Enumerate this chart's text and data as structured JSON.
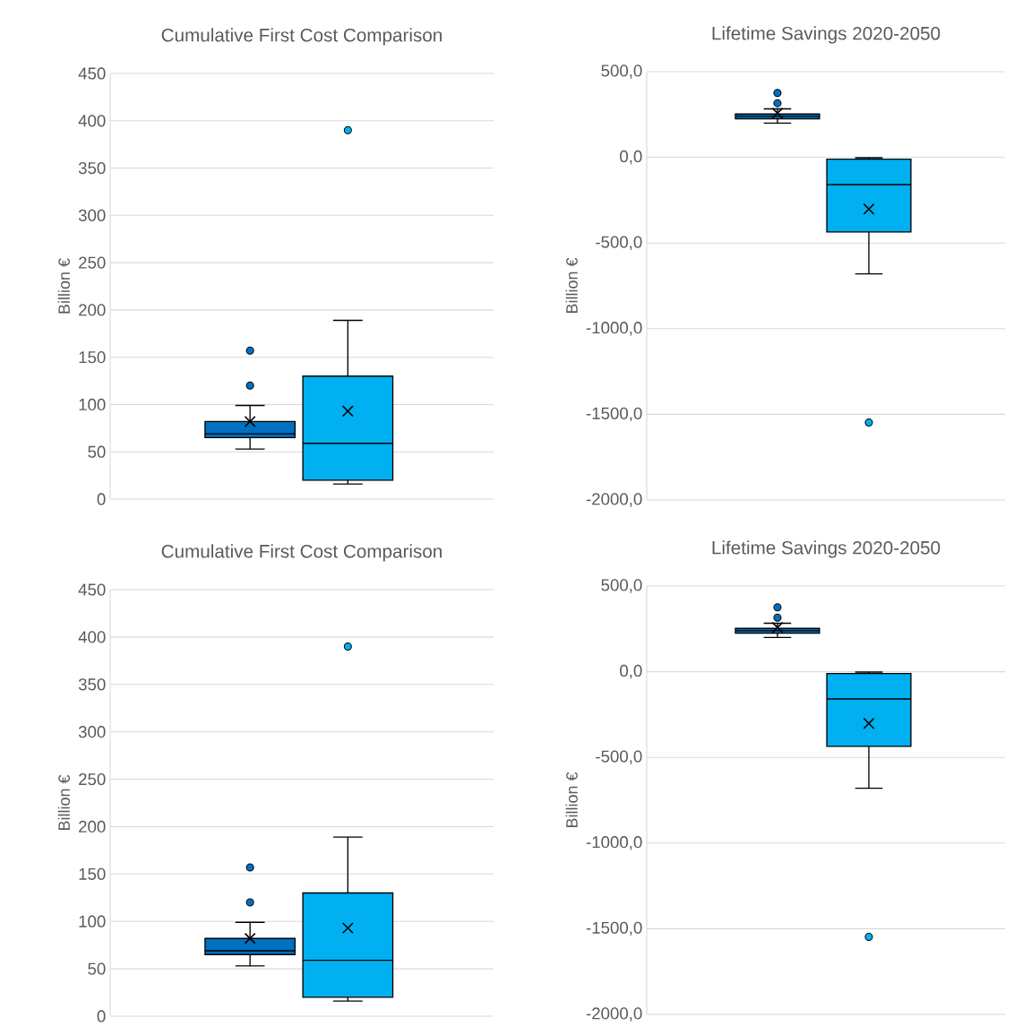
{
  "chart_data": [
    {
      "type": "box",
      "title": "Cumulative First Cost Comparison",
      "ylabel": "Billion €",
      "categories": [
        null,
        null
      ],
      "colors": [
        "#0070c0",
        "#00b0f0"
      ],
      "boxes": [
        {
          "low": 53,
          "q1": 65,
          "median": 69,
          "q3": 82,
          "high": 99,
          "mean": 82,
          "outliers": [
            120,
            157
          ]
        },
        {
          "low": 16,
          "q1": 20,
          "median": 59,
          "q3": 130,
          "high": 189,
          "mean": 93,
          "outliers": [
            390
          ]
        }
      ],
      "ylim": [
        0,
        450
      ],
      "yticks": [
        0,
        50,
        100,
        150,
        200,
        250,
        300,
        350,
        400,
        450
      ],
      "grid": "y",
      "tick_labels": "y"
    },
    {
      "type": "box",
      "title": "Lifetime Savings 2020-2050",
      "ylabel": "Billion €",
      "categories": [
        null,
        null
      ],
      "colors": [
        "#0070c0",
        "#00b0f0"
      ],
      "boxes": [
        {
          "low": 200,
          "q1": 225,
          "median": 239,
          "q3": 253,
          "high": 283,
          "mean": 258,
          "outliers": [
            316,
            376
          ]
        },
        {
          "low": -680,
          "q1": -436,
          "median": -159,
          "q3": -11,
          "high": -2,
          "mean": -302,
          "outliers": [
            -1548
          ]
        }
      ],
      "ylim": [
        -2000,
        500
      ],
      "yticks": [
        {
          "value": -2000,
          "label": "-2000,0"
        },
        {
          "value": -1500,
          "label": "-1500,0"
        },
        {
          "value": -1000,
          "label": "-1000,0"
        },
        {
          "value": -500,
          "label": "-500,0"
        },
        {
          "value": 0,
          "label": "0,0"
        },
        {
          "value": 500,
          "label": "500,0"
        }
      ],
      "grid": "y",
      "tick_labels": "y"
    },
    {
      "type": "box",
      "title": "Cumulative First Cost Comparison",
      "ylabel": "Billion €",
      "categories": [
        null,
        null
      ],
      "colors": [
        "#0070c0",
        "#00b0f0"
      ],
      "boxes": [
        {
          "low": 53,
          "q1": 65,
          "median": 69,
          "q3": 82,
          "high": 99,
          "mean": 82,
          "outliers": [
            120,
            157
          ]
        },
        {
          "low": 16,
          "q1": 20,
          "median": 59,
          "q3": 130,
          "high": 189,
          "mean": 93,
          "outliers": [
            390
          ]
        }
      ],
      "ylim": [
        0,
        450
      ],
      "yticks": [
        0,
        50,
        100,
        150,
        200,
        250,
        300,
        350,
        400,
        450
      ],
      "grid": "y",
      "tick_labels": "y"
    },
    {
      "type": "box",
      "title": "Lifetime Savings 2020-2050",
      "ylabel": "Billion €",
      "categories": [
        null,
        null
      ],
      "colors": [
        "#0070c0",
        "#00b0f0"
      ],
      "boxes": [
        {
          "low": 200,
          "q1": 225,
          "median": 239,
          "q3": 253,
          "high": 283,
          "mean": 258,
          "outliers": [
            316,
            376
          ]
        },
        {
          "low": -680,
          "q1": -436,
          "median": -159,
          "q3": -11,
          "high": -2,
          "mean": -302,
          "outliers": [
            -1548
          ]
        }
      ],
      "ylim": [
        -2000,
        500
      ],
      "yticks": [
        {
          "value": -2000,
          "label": "-2000,0"
        },
        {
          "value": -1500,
          "label": "-1500,0"
        },
        {
          "value": -1000,
          "label": "-1000,0"
        },
        {
          "value": -500,
          "label": "-500,0"
        },
        {
          "value": 0,
          "label": "0,0"
        },
        {
          "value": 500,
          "label": "500,0"
        }
      ],
      "grid": "y",
      "tick_labels": "y"
    }
  ]
}
